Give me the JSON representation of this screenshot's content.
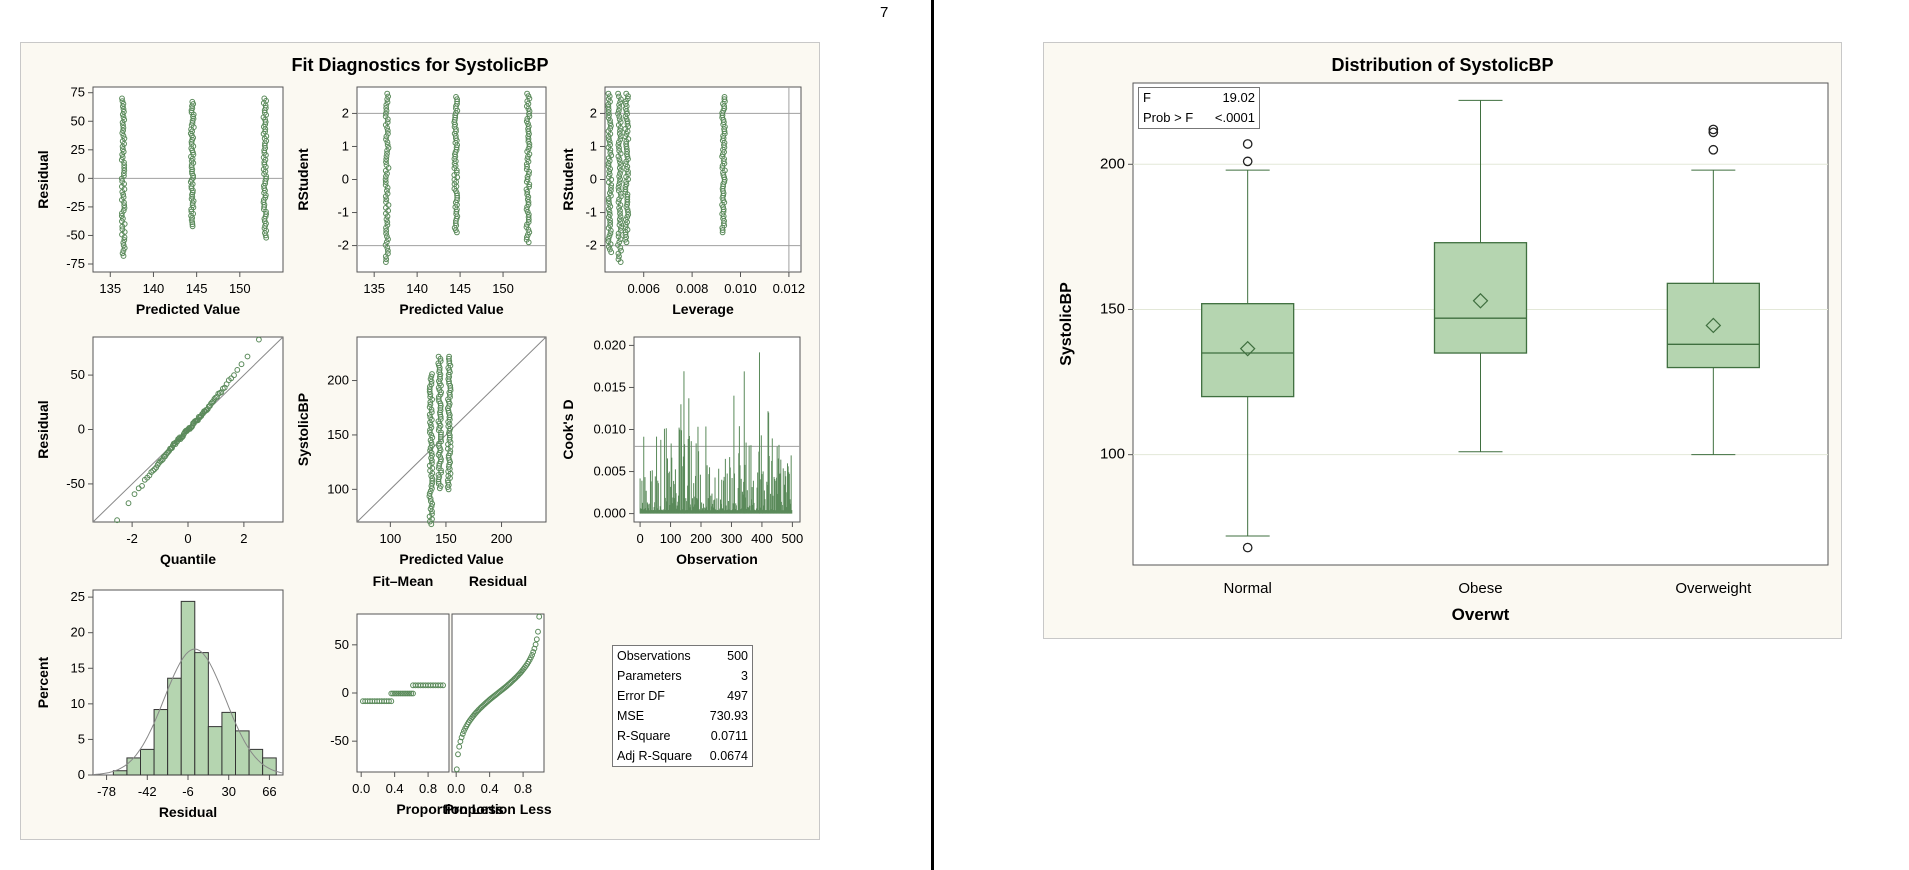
{
  "page_number": "7",
  "colors": {
    "panel_bg": "#fbf9f2",
    "marker": "#5a8a5a",
    "box_fill": "#b5d5b0",
    "box_edge": "#3f6f3f",
    "ref_line": "#a0a0a0",
    "grid": "#e3e8d8"
  },
  "fit_diagnostics": {
    "title": "Fit Diagnostics for SystolicBP",
    "stats": [
      {
        "label": "Observations",
        "value": "500"
      },
      {
        "label": "Parameters",
        "value": "3"
      },
      {
        "label": "Error DF",
        "value": "497"
      },
      {
        "label": "MSE",
        "value": "730.93"
      },
      {
        "label": "R-Square",
        "value": "0.0711"
      },
      {
        "label": "Adj R-Square",
        "value": "0.0674"
      }
    ]
  },
  "distribution": {
    "title": "Distribution of SystolicBP",
    "inset": [
      {
        "label": "F",
        "value": "19.02"
      },
      {
        "label": "Prob > F",
        "value": "<.0001"
      }
    ]
  },
  "chart_data": [
    {
      "id": "resid-vs-pred",
      "type": "scatter",
      "xlabel": "Predicted Value",
      "ylabel": "Residual",
      "xlim": [
        133,
        155
      ],
      "ylim": [
        -82,
        80
      ],
      "xticks": [
        135,
        140,
        145,
        150
      ],
      "yticks": [
        -75,
        -50,
        -25,
        0,
        25,
        50,
        75
      ],
      "ref_lines": {
        "y": [
          0
        ]
      },
      "clusters": [
        {
          "x": 136.5,
          "ymin": -68,
          "ymax": 70
        },
        {
          "x": 144.5,
          "ymin": -42,
          "ymax": 67
        },
        {
          "x": 152.9,
          "ymin": -52,
          "ymax": 70
        }
      ]
    },
    {
      "id": "rstudent-vs-pred",
      "type": "scatter",
      "xlabel": "Predicted Value",
      "ylabel": "RStudent",
      "xlim": [
        133,
        155
      ],
      "ylim": [
        -2.8,
        2.8
      ],
      "xticks": [
        135,
        140,
        145,
        150
      ],
      "yticks": [
        -2,
        -1,
        0,
        1,
        2
      ],
      "ref_lines": {
        "y": [
          -2,
          2
        ]
      },
      "clusters": [
        {
          "x": 136.5,
          "ymin": -2.5,
          "ymax": 2.6
        },
        {
          "x": 144.5,
          "ymin": -1.6,
          "ymax": 2.5
        },
        {
          "x": 152.9,
          "ymin": -1.9,
          "ymax": 2.6
        }
      ]
    },
    {
      "id": "rstudent-vs-leverage",
      "type": "scatter",
      "xlabel": "Leverage",
      "ylabel": "RStudent",
      "xlim": [
        0.0044,
        0.0125
      ],
      "ylim": [
        -2.8,
        2.8
      ],
      "xticks": [
        0.006,
        0.008,
        0.01,
        0.012
      ],
      "xticklabels": [
        "0.006",
        "0.008",
        "0.010",
        "0.012"
      ],
      "yticks": [
        -2,
        -1,
        0,
        1,
        2
      ],
      "ref_lines": {
        "y": [
          -2,
          2
        ],
        "x": [
          0.012
        ]
      },
      "clusters": [
        {
          "x": 0.0046,
          "ymin": -2.2,
          "ymax": 2.6
        },
        {
          "x": 0.005,
          "ymin": -2.5,
          "ymax": 2.6
        },
        {
          "x": 0.0053,
          "ymin": -1.9,
          "ymax": 2.6
        },
        {
          "x": 0.0093,
          "ymin": -1.6,
          "ymax": 2.5
        }
      ]
    },
    {
      "id": "qq-plot",
      "type": "scatter",
      "xlabel": "Quantile",
      "ylabel": "Residual",
      "xlim": [
        -3.4,
        3.4
      ],
      "ylim": [
        -85,
        85
      ],
      "xticks": [
        -2,
        0,
        2
      ],
      "yticks": [
        -50,
        0,
        50
      ],
      "diagonal": true,
      "sd": 27.04,
      "n": 500
    },
    {
      "id": "observed-vs-predicted",
      "type": "scatter",
      "xlabel": "Predicted Value",
      "ylabel": "SystolicBP",
      "xlim": [
        70,
        240
      ],
      "ylim": [
        70,
        240
      ],
      "xticks": [
        100,
        150,
        200
      ],
      "yticks": [
        100,
        150,
        200
      ],
      "diagonal": true,
      "clusters": [
        {
          "x": 136.5,
          "ymin": 68,
          "ymax": 206
        },
        {
          "x": 144.5,
          "ymin": 101,
          "ymax": 222
        },
        {
          "x": 152.9,
          "ymin": 100,
          "ymax": 222
        }
      ]
    },
    {
      "id": "cooks-d",
      "type": "bar",
      "xlabel": "Observation",
      "ylabel": "Cook's D",
      "xlim": [
        -20,
        525
      ],
      "ylim": [
        -0.001,
        0.021
      ],
      "xticks": [
        0,
        100,
        200,
        300,
        400,
        500
      ],
      "yticks": [
        0,
        0.005,
        0.01,
        0.015,
        0.02
      ],
      "yticklabels": [
        "0.000",
        "0.005",
        "0.010",
        "0.015",
        "0.020"
      ],
      "ref_lines": {
        "y": [
          0.008
        ]
      },
      "n": 500
    },
    {
      "id": "resid-histogram",
      "type": "bar",
      "xlabel": "Residual",
      "ylabel": "Percent",
      "xlim": [
        -90,
        78
      ],
      "ylim": [
        0,
        26
      ],
      "xticks": [
        -78,
        -42,
        -6,
        30,
        66
      ],
      "yticks": [
        0,
        5,
        10,
        15,
        20,
        25
      ],
      "bin_width": 12,
      "bin_starts": [
        -84,
        -72,
        -60,
        -48,
        -36,
        -24,
        -12,
        0,
        12,
        24,
        36,
        48,
        60
      ],
      "values": [
        0,
        0.6,
        2.4,
        3.6,
        9.2,
        13.6,
        24.4,
        17.2,
        6.8,
        8.8,
        6.2,
        3.6,
        2.4
      ],
      "normal_curve": {
        "mean": 0,
        "sd": 27.04
      }
    },
    {
      "id": "rf-fit-mean",
      "type": "scatter",
      "title": "Fit–Mean",
      "xlabel": "Proportion Less",
      "ylabel": "",
      "xlim": [
        -0.05,
        1.05
      ],
      "ylim": [
        -82,
        82
      ],
      "xticks": [
        0,
        0.4,
        0.8
      ],
      "xticklabels": [
        "0.0",
        "0.4",
        "0.8"
      ],
      "yticks": [
        -50,
        0,
        50
      ],
      "steps": [
        {
          "x0": 0.02,
          "x1": 0.36,
          "y": -8.5
        },
        {
          "x0": 0.36,
          "x1": 0.62,
          "y": -0.5
        },
        {
          "x0": 0.62,
          "x1": 0.98,
          "y": 8
        }
      ]
    },
    {
      "id": "rf-residual",
      "type": "scatter",
      "title": "Residual",
      "xlabel": "Proportion Less",
      "ylabel": "",
      "xlim": [
        -0.05,
        1.05
      ],
      "ylim": [
        -82,
        82
      ],
      "xticks": [
        0,
        0.4,
        0.8
      ],
      "xticklabels": [
        "0.0",
        "0.4",
        "0.8"
      ],
      "sd": 27.04,
      "n": 500
    },
    {
      "id": "boxplot",
      "type": "box",
      "xlabel": "Overwt",
      "ylabel": "SystolicBP",
      "ylim": [
        62,
        228
      ],
      "yticks": [
        100,
        150,
        200
      ],
      "categories": [
        "Normal",
        "Obese",
        "Overweight"
      ],
      "boxes": [
        {
          "min": 72,
          "q1": 120,
          "median": 135,
          "q3": 152,
          "max": 198,
          "mean": 136.5,
          "outliers": [
            68,
            201,
            207
          ]
        },
        {
          "min": 101,
          "q1": 135,
          "median": 147,
          "q3": 173,
          "max": 222,
          "mean": 153,
          "outliers": []
        },
        {
          "min": 100,
          "q1": 130,
          "median": 138,
          "q3": 159,
          "max": 198,
          "mean": 144.5,
          "outliers": [
            205,
            211,
            212
          ]
        }
      ]
    }
  ]
}
